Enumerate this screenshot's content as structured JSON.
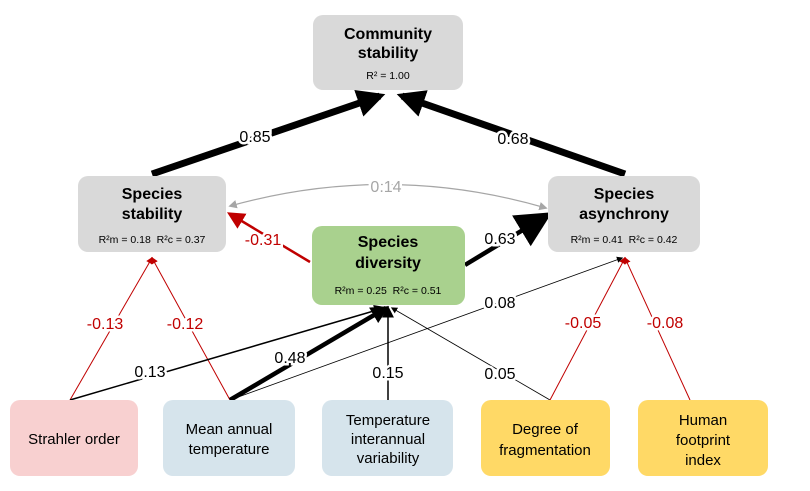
{
  "nodes": [
    {
      "label": [
        "Community",
        "stability"
      ],
      "stats": "R² = 1.00"
    },
    {
      "label": [
        "Species",
        "stability"
      ],
      "stats": "R²m = 0.18  R²c = 0.37"
    },
    {
      "label": [
        "Species",
        "asynchrony"
      ],
      "stats": "R²m = 0.41  R²c = 0.42"
    },
    {
      "label": [
        "Species",
        "diversity"
      ],
      "stats": "R²m = 0.25  R²c = 0.51"
    },
    {
      "label": [
        "Strahler order"
      ]
    },
    {
      "label": [
        "Mean annual",
        "temperature"
      ]
    },
    {
      "label": [
        "Temperature",
        "interannual",
        "variability"
      ]
    },
    {
      "label": [
        "Degree of",
        "fragmentation"
      ]
    },
    {
      "label": [
        "Human",
        "footprint",
        "index"
      ]
    }
  ],
  "path_coefficients": [
    0.85,
    0.68,
    0.14,
    -0.31,
    0.63,
    -0.13,
    -0.12,
    0.13,
    0.48,
    0.08,
    0.15,
    0.05,
    -0.05,
    -0.08
  ]
}
